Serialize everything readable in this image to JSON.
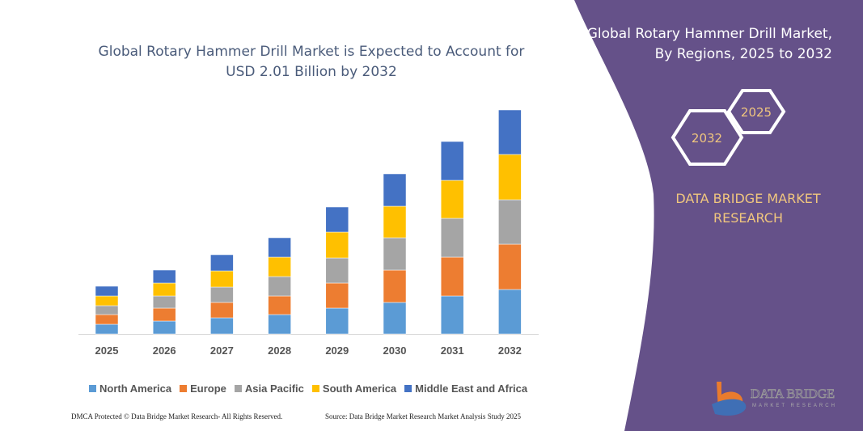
{
  "chart_data": {
    "type": "bar",
    "stacked": true,
    "title": "Global Rotary Hammer Drill Market is Expected to Account for USD 2.01 Billion by 2032",
    "categories": [
      "2025",
      "2026",
      "2027",
      "2028",
      "2029",
      "2030",
      "2031",
      "2032"
    ],
    "series": [
      {
        "name": "North America",
        "color": "#5b9bd5",
        "values": [
          12,
          16,
          20,
          24,
          32,
          39,
          47,
          55
        ]
      },
      {
        "name": "Europe",
        "color": "#ed7d31",
        "values": [
          12,
          16,
          19,
          23,
          31,
          40,
          48,
          56
        ]
      },
      {
        "name": "Asia Pacific",
        "color": "#a5a5a5",
        "values": [
          11,
          15,
          19,
          24,
          31,
          40,
          48,
          55
        ]
      },
      {
        "name": "South America",
        "color": "#ffc000",
        "values": [
          12,
          16,
          20,
          24,
          32,
          39,
          47,
          56
        ]
      },
      {
        "name": "Middle East and Africa",
        "color": "#4472c4",
        "values": [
          12,
          16,
          20,
          24,
          31,
          40,
          48,
          55
        ]
      }
    ],
    "value_note_unitless": true,
    "grid": false,
    "y_axis_visible": false,
    "legend_position": "bottom"
  },
  "side_panel": {
    "title_line1": "Global Rotary Hammer Drill Market,",
    "title_line2": "By Regions, 2025 to 2032",
    "hex_start": "2025",
    "hex_end": "2032",
    "brand_line1": "DATA BRIDGE MARKET",
    "brand_line2": "RESEARCH",
    "logo_text": "DATA BRIDGE",
    "logo_subtext": "MARKET RESEARCH",
    "bg_color": "#655189",
    "accent_color": "#f0c67e"
  },
  "footer": {
    "left": "DMCA Protected © Data Bridge Market Research-  All Rights Reserved.",
    "right": "Source: Data Bridge Market Research  Market Analysis Study 2025"
  }
}
